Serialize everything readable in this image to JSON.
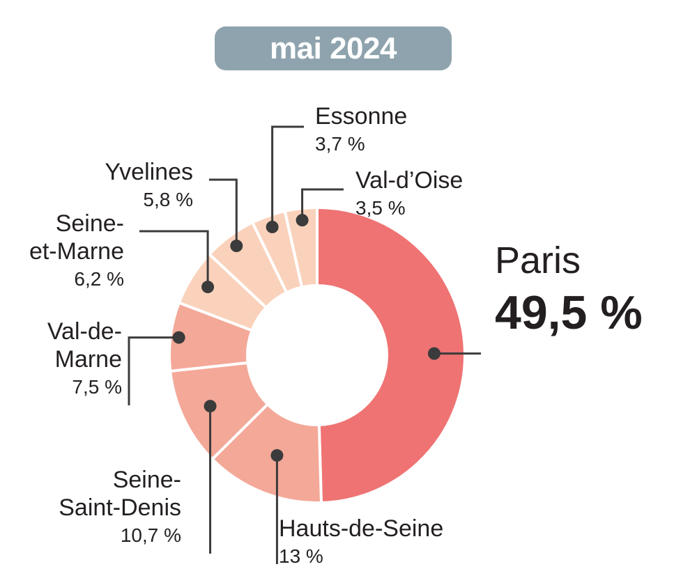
{
  "chart_data": {
    "type": "pie",
    "style": "donut",
    "title": "mai 2024",
    "slices": [
      {
        "label": "Paris",
        "value_label": "49,5 %",
        "value": 49.5,
        "color": "#ef7373"
      },
      {
        "label": "Hauts-de-Seine",
        "value_label": "13 %",
        "value": 13,
        "color": "#f4a898"
      },
      {
        "label": "Seine-Saint-Denis",
        "label_lines": [
          "Seine-",
          "Saint-Denis"
        ],
        "value_label": "10,7 %",
        "value": 10.7,
        "color": "#f4a898"
      },
      {
        "label": "Val-de-Marne",
        "label_lines": [
          "Val-de-",
          "Marne"
        ],
        "value_label": "7,5 %",
        "value": 7.5,
        "color": "#f4a898"
      },
      {
        "label": "Seine-et-Marne",
        "label_lines": [
          "Seine-",
          "et-Marne"
        ],
        "value_label": "6,2 %",
        "value": 6.2,
        "color": "#fad2bc"
      },
      {
        "label": "Yvelines",
        "value_label": "5,8 %",
        "value": 5.8,
        "color": "#fad2bc"
      },
      {
        "label": "Essonne",
        "value_label": "3,7 %",
        "value": 3.7,
        "color": "#fad2bc"
      },
      {
        "label": "Val-d’Oise",
        "value_label": "3,5 %",
        "value": 3.5,
        "color": "#fad2bc"
      }
    ]
  }
}
